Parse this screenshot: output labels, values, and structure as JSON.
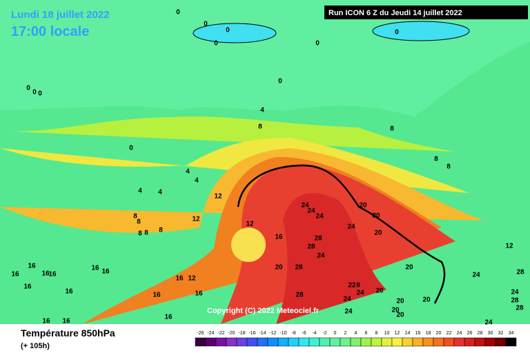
{
  "header": {
    "date": "Lundi 18 juillet 2022",
    "time": "17:00 locale",
    "run": "Run ICON 6 Z du Jeudi 14 juillet 2022"
  },
  "copyright": "Copyright (C) 2022 Meteociel.fr",
  "footer": {
    "title": "Température 850hPa",
    "lead": "(+ 105h)"
  },
  "legend": {
    "values": [
      -26,
      -24,
      -22,
      -20,
      -18,
      -16,
      -14,
      -12,
      -10,
      -8,
      -6,
      -4,
      -2,
      0,
      2,
      4,
      6,
      8,
      10,
      12,
      14,
      16,
      18,
      20,
      22,
      24,
      26,
      28,
      30,
      32,
      34
    ],
    "colors": [
      "#3a0040",
      "#5a0070",
      "#7a10a0",
      "#8a30c8",
      "#6a40e0",
      "#4050f0",
      "#2070f8",
      "#1090ff",
      "#10b0ff",
      "#20d0ff",
      "#30e8f0",
      "#40f0d0",
      "#50f0b0",
      "#60f0a0",
      "#70f090",
      "#80f070",
      "#a0f050",
      "#c0f040",
      "#e0f040",
      "#f8f040",
      "#f8d030",
      "#f8b028",
      "#f89020",
      "#f87020",
      "#f05020",
      "#e83030",
      "#d82020",
      "#c01010",
      "#a00000",
      "#700000",
      "#000000"
    ]
  },
  "contour_labels": [
    0,
    0,
    0,
    0,
    0,
    0,
    0,
    0,
    0,
    0,
    4,
    8,
    8,
    0,
    4,
    4,
    4,
    4,
    12,
    12,
    8,
    8,
    8,
    8,
    8,
    12,
    16,
    8,
    8,
    24,
    24,
    24,
    20,
    20,
    24,
    20,
    28,
    28,
    24,
    20,
    28,
    20,
    12,
    24,
    28,
    16,
    16,
    16,
    16,
    16,
    16,
    12,
    16,
    16,
    22,
    8,
    24,
    28,
    20,
    16,
    16,
    24,
    24,
    28,
    20,
    20,
    28,
    20,
    20,
    24,
    16,
    16,
    16,
    24,
    16
  ]
}
